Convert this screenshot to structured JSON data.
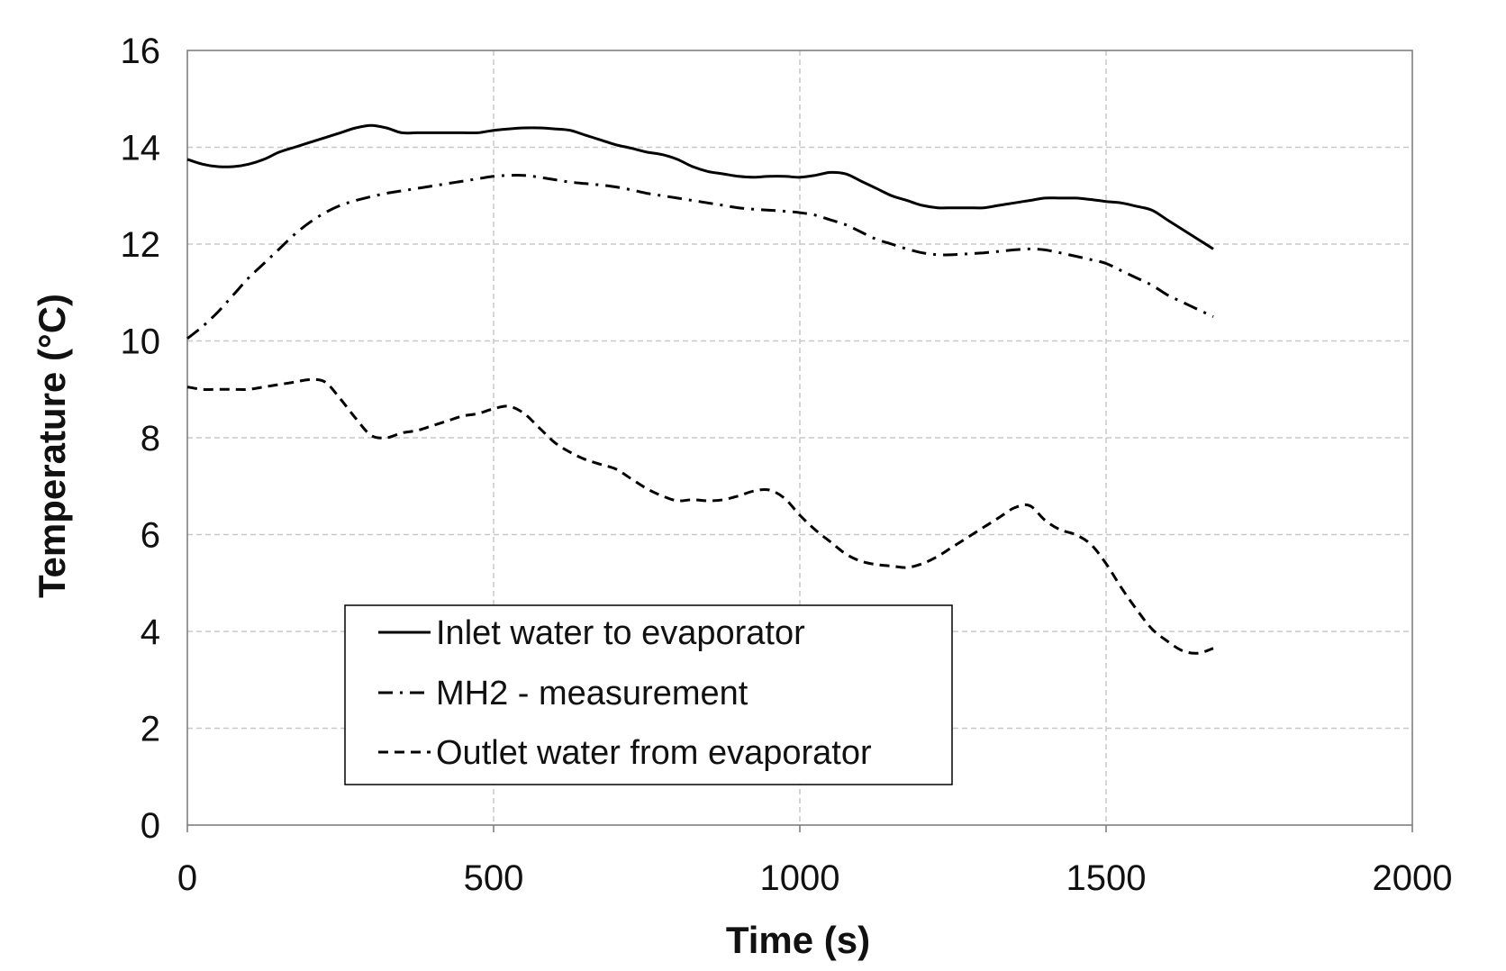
{
  "chart_data": {
    "type": "line",
    "title": "",
    "xlabel": "Time (s)",
    "ylabel": "Temperature (°C)",
    "xlim": [
      0,
      2000
    ],
    "ylim": [
      0,
      16
    ],
    "xticks": [
      0,
      500,
      1000,
      1500,
      2000
    ],
    "yticks": [
      0,
      2,
      4,
      6,
      8,
      10,
      12,
      14,
      16
    ],
    "grid": true,
    "legend_position": "lower-left",
    "series": [
      {
        "name": "Inlet water to evaporator",
        "style": "solid",
        "color": "#000000",
        "x": [
          0,
          25,
          50,
          75,
          100,
          125,
          150,
          175,
          200,
          225,
          250,
          275,
          300,
          325,
          350,
          375,
          400,
          425,
          450,
          475,
          500,
          525,
          550,
          575,
          600,
          625,
          650,
          675,
          700,
          725,
          750,
          775,
          800,
          825,
          850,
          875,
          900,
          925,
          950,
          975,
          1000,
          1025,
          1050,
          1075,
          1100,
          1125,
          1150,
          1175,
          1200,
          1225,
          1250,
          1275,
          1300,
          1325,
          1350,
          1375,
          1400,
          1425,
          1450,
          1475,
          1500,
          1525,
          1550,
          1575,
          1600,
          1625,
          1650,
          1675
        ],
        "y": [
          13.75,
          13.65,
          13.6,
          13.6,
          13.65,
          13.75,
          13.9,
          14.0,
          14.1,
          14.2,
          14.3,
          14.4,
          14.45,
          14.4,
          14.3,
          14.3,
          14.3,
          14.3,
          14.3,
          14.3,
          14.35,
          14.38,
          14.4,
          14.4,
          14.38,
          14.35,
          14.25,
          14.15,
          14.05,
          13.98,
          13.9,
          13.85,
          13.75,
          13.6,
          13.5,
          13.45,
          13.4,
          13.38,
          13.4,
          13.4,
          13.38,
          13.42,
          13.48,
          13.45,
          13.3,
          13.15,
          13.0,
          12.9,
          12.8,
          12.75,
          12.75,
          12.75,
          12.75,
          12.8,
          12.85,
          12.9,
          12.95,
          12.95,
          12.95,
          12.92,
          12.88,
          12.85,
          12.78,
          12.7,
          12.5,
          12.3,
          12.1,
          11.9
        ]
      },
      {
        "name": "MH2 - measurement",
        "style": "dash-dot",
        "color": "#000000",
        "x": [
          0,
          25,
          50,
          75,
          100,
          125,
          150,
          175,
          200,
          225,
          250,
          275,
          300,
          325,
          350,
          375,
          400,
          425,
          450,
          475,
          500,
          525,
          550,
          575,
          600,
          625,
          650,
          675,
          700,
          725,
          750,
          775,
          800,
          825,
          850,
          875,
          900,
          925,
          950,
          975,
          1000,
          1025,
          1050,
          1075,
          1100,
          1125,
          1150,
          1175,
          1200,
          1225,
          1250,
          1275,
          1300,
          1325,
          1350,
          1375,
          1400,
          1425,
          1450,
          1475,
          1500,
          1525,
          1550,
          1575,
          1600,
          1625,
          1650,
          1675
        ],
        "y": [
          10.05,
          10.3,
          10.6,
          10.95,
          11.3,
          11.6,
          11.9,
          12.2,
          12.45,
          12.65,
          12.8,
          12.9,
          12.98,
          13.05,
          13.1,
          13.15,
          13.2,
          13.25,
          13.3,
          13.35,
          13.4,
          13.42,
          13.42,
          13.38,
          13.33,
          13.28,
          13.25,
          13.22,
          13.18,
          13.12,
          13.05,
          13.0,
          12.95,
          12.9,
          12.85,
          12.8,
          12.75,
          12.72,
          12.7,
          12.68,
          12.65,
          12.6,
          12.5,
          12.4,
          12.25,
          12.1,
          12.0,
          11.9,
          11.82,
          11.78,
          11.78,
          11.8,
          11.82,
          11.85,
          11.88,
          11.9,
          11.88,
          11.82,
          11.75,
          11.68,
          11.6,
          11.45,
          11.3,
          11.15,
          10.95,
          10.8,
          10.65,
          10.5
        ]
      },
      {
        "name": "Outlet water from evaporator",
        "style": "dashed",
        "color": "#000000",
        "x": [
          0,
          25,
          50,
          75,
          100,
          125,
          150,
          175,
          200,
          225,
          250,
          275,
          300,
          325,
          350,
          375,
          400,
          425,
          450,
          475,
          500,
          525,
          550,
          575,
          600,
          625,
          650,
          675,
          700,
          725,
          750,
          775,
          800,
          825,
          850,
          875,
          900,
          925,
          950,
          975,
          1000,
          1025,
          1050,
          1075,
          1100,
          1125,
          1150,
          1175,
          1200,
          1225,
          1250,
          1275,
          1300,
          1325,
          1350,
          1375,
          1400,
          1425,
          1450,
          1475,
          1500,
          1525,
          1550,
          1575,
          1600,
          1625,
          1650,
          1675
        ],
        "y": [
          9.05,
          9.0,
          9.0,
          9.0,
          9.0,
          9.05,
          9.1,
          9.15,
          9.2,
          9.15,
          8.8,
          8.4,
          8.05,
          8.0,
          8.1,
          8.15,
          8.25,
          8.35,
          8.45,
          8.5,
          8.6,
          8.65,
          8.5,
          8.2,
          7.9,
          7.7,
          7.55,
          7.45,
          7.35,
          7.15,
          6.95,
          6.8,
          6.7,
          6.72,
          6.7,
          6.72,
          6.8,
          6.9,
          6.92,
          6.75,
          6.4,
          6.1,
          5.85,
          5.6,
          5.45,
          5.38,
          5.35,
          5.32,
          5.4,
          5.55,
          5.75,
          5.95,
          6.15,
          6.35,
          6.55,
          6.6,
          6.3,
          6.1,
          6.0,
          5.8,
          5.4,
          4.9,
          4.45,
          4.05,
          3.8,
          3.6,
          3.55,
          3.65
        ]
      }
    ]
  }
}
